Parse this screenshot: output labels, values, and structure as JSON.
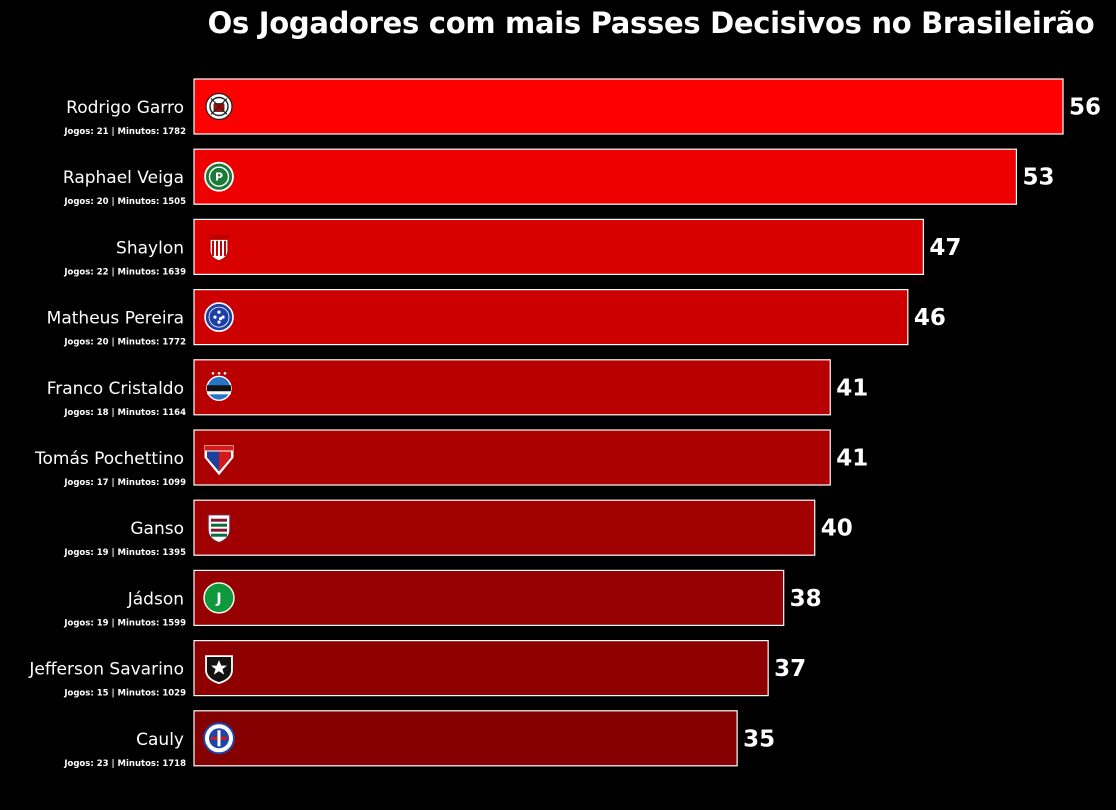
{
  "chart_data": {
    "type": "bar",
    "orientation": "horizontal",
    "title": "Os Jogadores com mais Passes Decisivos no Brasileirão",
    "xlabel": "",
    "ylabel": "",
    "xlim": [
      0,
      56
    ],
    "grid": false,
    "categories": [
      "Rodrigo Garro",
      "Raphael Veiga",
      "Shaylon",
      "Matheus Pereira",
      "Franco Cristaldo",
      "Tomás Pochettino",
      "Ganso",
      "Jádson",
      "Jefferson Savarino",
      "Cauly"
    ],
    "values": [
      56,
      53,
      47,
      46,
      41,
      41,
      40,
      38,
      37,
      35
    ],
    "value_labels": [
      "56",
      "53",
      "47",
      "46",
      "41",
      "41",
      "40",
      "38",
      "37",
      "35"
    ],
    "stats": [
      "Jogos: 21 | Minutos: 1782",
      "Jogos: 20 | Minutos: 1505",
      "Jogos: 22 | Minutos: 1639",
      "Jogos: 20 | Minutos: 1772",
      "Jogos: 18 | Minutos: 1164",
      "Jogos: 17 | Minutos: 1099",
      "Jogos: 19 | Minutos: 1395",
      "Jogos: 19 | Minutos: 1599",
      "Jogos: 15 | Minutos: 1029",
      "Jogos: 23 | Minutos: 1718"
    ],
    "club_icons": [
      "corinthians-crest-icon",
      "palmeiras-crest-icon",
      "atletico-goianiense-crest-icon",
      "cruzeiro-crest-icon",
      "gremio-crest-icon",
      "fortaleza-crest-icon",
      "fluminense-crest-icon",
      "juventude-crest-icon",
      "botafogo-crest-icon",
      "bahia-crest-icon"
    ],
    "bar_colors": [
      "#ff0000",
      "#ef0000",
      "#d90000",
      "#cc0000",
      "#b80000",
      "#ab0000",
      "#a00000",
      "#960000",
      "#8e0000",
      "#850000"
    ],
    "bar_border_color": "#ffffff",
    "background": "#000000"
  }
}
